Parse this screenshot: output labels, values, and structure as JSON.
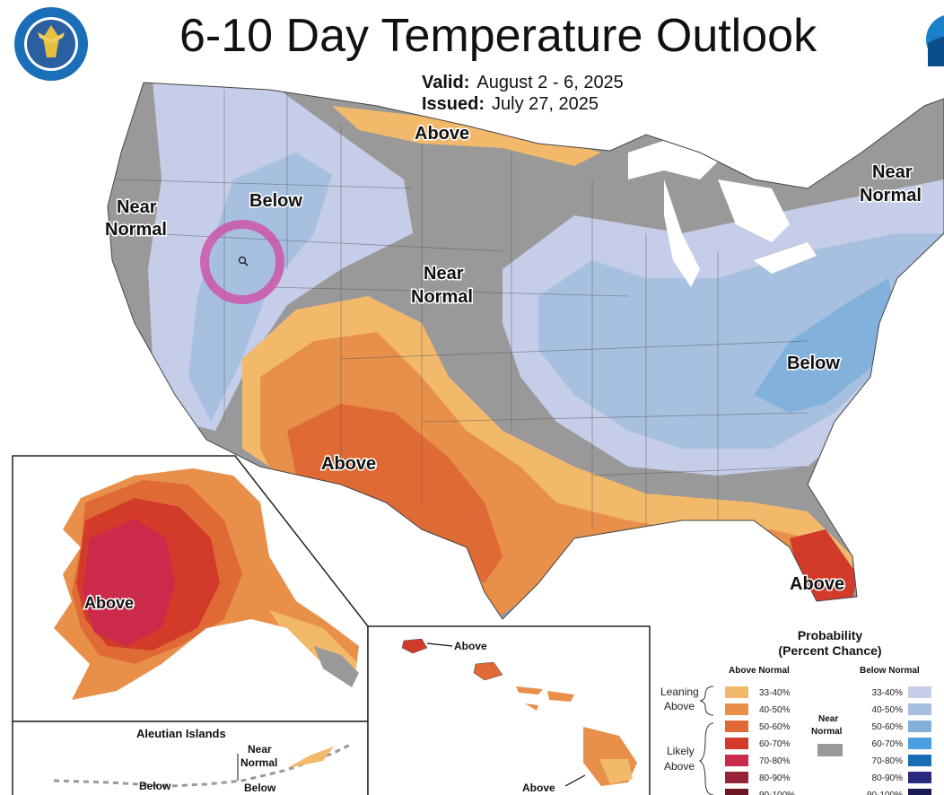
{
  "title": "6-10 Day Temperature Outlook",
  "valid": {
    "label": "Valid:",
    "value": "August 2 - 6, 2025"
  },
  "issued": {
    "label": "Issued:",
    "value": "July 27, 2025"
  },
  "map_labels": {
    "above_north": "Above",
    "below_northwest": "Below",
    "near_normal_west_1": "Near",
    "near_normal_west_2": "Normal",
    "near_normal_center_1": "Near",
    "near_normal_center_2": "Normal",
    "near_normal_northeast_1": "Near",
    "near_normal_northeast_2": "Normal",
    "below_east": "Below",
    "above_southwest": "Above",
    "above_florida": "Above",
    "above_alaska": "Above",
    "hawaii_above_1": "Above",
    "hawaii_above_2": "Above",
    "aleutian_title": "Aleutian Islands",
    "aleutian_near_1": "Near",
    "aleutian_near_2": "Normal",
    "aleutian_below_1": "Below",
    "aleutian_below_2": "Below"
  },
  "legend": {
    "title_1": "Probability",
    "title_2": "(Percent Chance)",
    "above_header": "Above Normal",
    "below_header": "Below Normal",
    "leaning_1": "Leaning",
    "leaning_2": "Above",
    "likely_1": "Likely",
    "likely_2": "Above",
    "near_1": "Near",
    "near_2": "Normal",
    "above_bins": [
      {
        "label": "33-40%",
        "color": "#f2b96b"
      },
      {
        "label": "40-50%",
        "color": "#e8904a"
      },
      {
        "label": "50-60%",
        "color": "#e06a35"
      },
      {
        "label": "60-70%",
        "color": "#d23a2a"
      },
      {
        "label": "70-80%",
        "color": "#cc2a4a"
      },
      {
        "label": "80-90%",
        "color": "#962538"
      },
      {
        "label": "90-100%",
        "color": "#6e1424"
      }
    ],
    "below_bins": [
      {
        "label": "33-40%",
        "color": "#c5cde8"
      },
      {
        "label": "40-50%",
        "color": "#a8c0e0"
      },
      {
        "label": "50-60%",
        "color": "#82b2dc"
      },
      {
        "label": "60-70%",
        "color": "#4da0df"
      },
      {
        "label": "70-80%",
        "color": "#1a6cb5"
      },
      {
        "label": "80-90%",
        "color": "#2a2a80"
      },
      {
        "label": "90-100%",
        "color": "#1a1a55"
      }
    ],
    "near_color": "#999999"
  },
  "colors": {
    "near_normal": "#999999",
    "below_lean": "#c5cde8",
    "below_40": "#a8c0e0",
    "below_50": "#82b2dc",
    "above_lean": "#f2b96b",
    "above_40": "#e8904a",
    "above_50": "#e06a35",
    "above_60": "#d23a2a",
    "above_70": "#cc2a4a",
    "cursor_ring": "#cc55aa"
  },
  "icons": {
    "seal": "department-of-commerce-seal-icon",
    "noaa": "noaa-logo-icon",
    "cursor": "zoom-cursor-icon"
  }
}
